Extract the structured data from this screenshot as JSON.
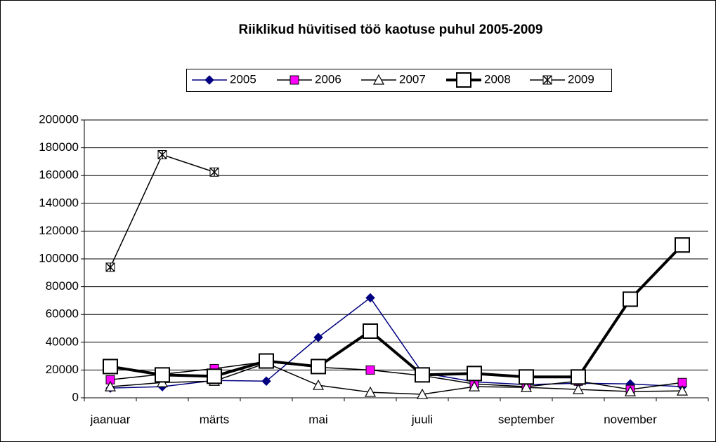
{
  "chart_data": {
    "type": "line",
    "title": "Riiklikud hüvitised töö kaotuse puhul 2005-2009",
    "categories": [
      "jaanuar",
      null,
      "märts",
      null,
      "mai",
      null,
      "juuli",
      null,
      "september",
      null,
      "november",
      null
    ],
    "series": [
      {
        "name": "2005",
        "color": "#000080",
        "marker_color": "#000080",
        "values": [
          7000,
          8000,
          12500,
          12000,
          43500,
          72000,
          18000,
          11500,
          9500,
          10500,
          10000,
          8000
        ]
      },
      {
        "name": "2006",
        "color": "#000000",
        "marker_color": "#ff00ff",
        "values": [
          13000,
          17000,
          21000,
          26000,
          22000,
          20000,
          16000,
          10000,
          8000,
          12000,
          6000,
          11000
        ]
      },
      {
        "name": "2007",
        "color": "#000000",
        "marker_color": "#ffffff",
        "values": [
          8000,
          11000,
          12000,
          25000,
          9000,
          4000,
          2500,
          8000,
          7500,
          6000,
          4500,
          5000
        ]
      },
      {
        "name": "2008",
        "color": "#000000",
        "marker_color": "#ffffff",
        "values": [
          22500,
          16500,
          15500,
          26500,
          22500,
          48000,
          16500,
          17500,
          15000,
          15000,
          71000,
          110000
        ]
      },
      {
        "name": "2009",
        "color": "#000000",
        "marker_color": "#ffffff",
        "values": [
          94000,
          175000,
          162500,
          null,
          null,
          null,
          null,
          null,
          null,
          null,
          null,
          null
        ]
      }
    ],
    "ylim": [
      0,
      200000
    ],
    "yticks": [
      0,
      20000,
      40000,
      60000,
      80000,
      100000,
      120000,
      140000,
      160000,
      180000,
      200000
    ],
    "grid": true,
    "legend": "top"
  }
}
